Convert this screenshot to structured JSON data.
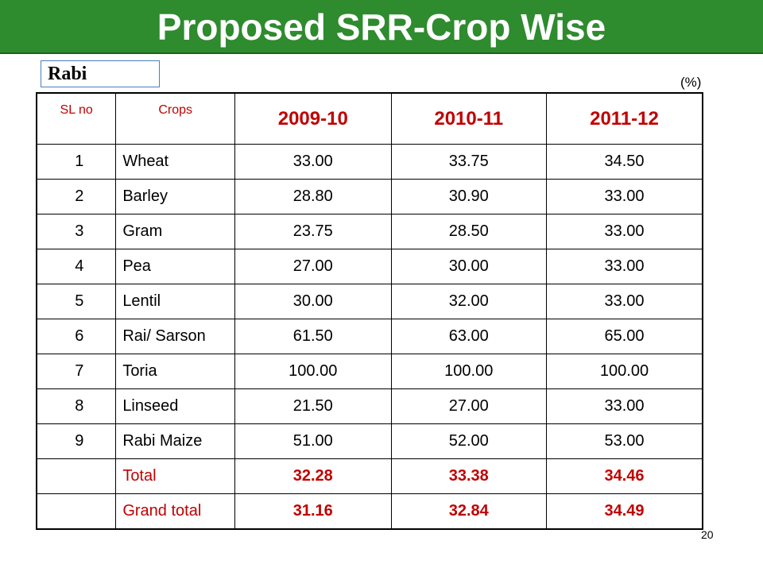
{
  "title": "Proposed SRR-Crop Wise",
  "section": "Rabi",
  "unit": "(%)",
  "table": {
    "headers": {
      "sl": "SL no",
      "crop": "Crops",
      "years": [
        "2009-10",
        "2010-11",
        "2011-12"
      ]
    },
    "rows": [
      {
        "sl": "1",
        "crop": "Wheat",
        "values": [
          "33.00",
          "33.75",
          "34.50"
        ]
      },
      {
        "sl": "2",
        "crop": "Barley",
        "values": [
          "28.80",
          "30.90",
          "33.00"
        ]
      },
      {
        "sl": "3",
        "crop": "Gram",
        "values": [
          "23.75",
          "28.50",
          "33.00"
        ]
      },
      {
        "sl": "4",
        "crop": "Pea",
        "values": [
          "27.00",
          "30.00",
          "33.00"
        ]
      },
      {
        "sl": "5",
        "crop": "Lentil",
        "values": [
          "30.00",
          "32.00",
          "33.00"
        ]
      },
      {
        "sl": "6",
        "crop": "Rai/ Sarson",
        "values": [
          "61.50",
          "63.00",
          "65.00"
        ]
      },
      {
        "sl": "7",
        "crop": "Toria",
        "values": [
          "100.00",
          "100.00",
          "100.00"
        ]
      },
      {
        "sl": "8",
        "crop": "Linseed",
        "values": [
          "21.50",
          "27.00",
          "33.00"
        ]
      },
      {
        "sl": "9",
        "crop": "Rabi Maize",
        "values": [
          "51.00",
          "52.00",
          "53.00"
        ]
      }
    ],
    "totals": [
      {
        "label": "Total",
        "values": [
          "32.28",
          "33.38",
          "34.46"
        ]
      },
      {
        "label": "Grand total",
        "values": [
          "31.16",
          "32.84",
          "34.49"
        ]
      }
    ]
  },
  "page_number": "20",
  "colors": {
    "title_bar": "#2e8b2e",
    "accent_red": "#c00000"
  }
}
